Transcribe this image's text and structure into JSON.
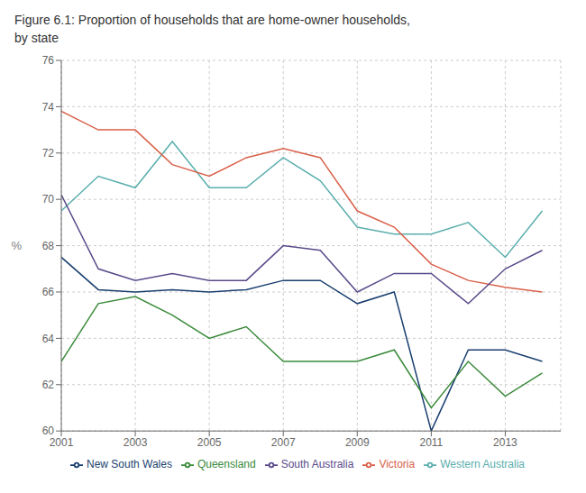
{
  "chart_data": {
    "type": "line",
    "title": "Figure 6.1: Proportion of households that are home-owner households,",
    "subtitle": "by state",
    "ylabel": "%",
    "x": [
      2001,
      2002,
      2003,
      2004,
      2005,
      2006,
      2007,
      2008,
      2009,
      2010,
      2011,
      2012,
      2013,
      2014
    ],
    "xlim": [
      2001,
      2014.5
    ],
    "xticks": [
      2001,
      2003,
      2005,
      2007,
      2009,
      2011,
      2013
    ],
    "ylim": [
      60,
      76
    ],
    "yticks": [
      60,
      62,
      64,
      66,
      68,
      70,
      72,
      74,
      76
    ],
    "grid": true,
    "legend": "bottom",
    "series": [
      {
        "name": "New South Wales",
        "color": "#1a3f6f",
        "values": [
          67.5,
          66.1,
          66.0,
          66.1,
          66.0,
          66.1,
          66.5,
          66.5,
          65.5,
          66.0,
          60.0,
          63.5,
          63.5,
          63.0
        ]
      },
      {
        "name": "Queensland",
        "color": "#3a8a3a",
        "values": [
          63.0,
          65.5,
          65.8,
          65.0,
          64.0,
          64.5,
          63.0,
          63.0,
          63.0,
          63.5,
          61.0,
          63.0,
          61.5,
          62.5
        ]
      },
      {
        "name": "Western Australia",
        "color": "#5aaeae",
        "values": [
          69.5,
          71.0,
          70.5,
          72.5,
          70.5,
          70.5,
          71.8,
          70.8,
          68.8,
          68.5,
          68.5,
          69.0,
          67.5,
          69.5
        ]
      },
      {
        "name": "Victoria",
        "color": "#d9604a",
        "values": [
          73.8,
          73.0,
          73.0,
          71.5,
          71.0,
          71.8,
          72.2,
          71.8,
          69.5,
          68.8,
          67.2,
          66.5,
          66.2,
          66.0
        ]
      },
      {
        "name": "South Australia",
        "color": "#5a4a8a",
        "values": [
          70.2,
          67.0,
          66.5,
          66.8,
          66.5,
          66.5,
          68.0,
          67.8,
          66.0,
          66.8,
          66.8,
          65.5,
          67.0,
          67.8
        ]
      }
    ]
  }
}
